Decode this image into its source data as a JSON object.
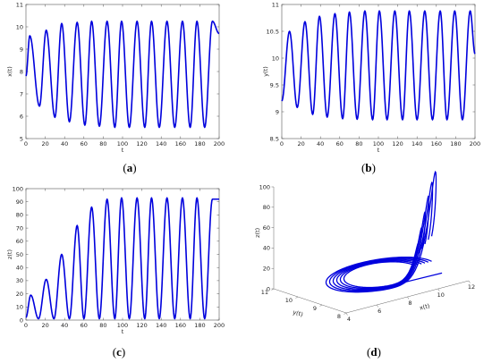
{
  "chart_data": [
    {
      "panel": "a",
      "type": "line",
      "title": "",
      "xlabel": "t",
      "ylabel": "x(t)",
      "xlim": [
        0,
        200
      ],
      "ylim": [
        5,
        11
      ],
      "xticks": [
        "0",
        "20",
        "40",
        "60",
        "80",
        "100",
        "120",
        "140",
        "160",
        "180",
        "200"
      ],
      "yticks": [
        "5",
        "6",
        "7",
        "8",
        "9",
        "10",
        "11"
      ],
      "series": [
        {
          "color": "#0000dd",
          "x0": 7.8,
          "peaks": [
            [
              4,
              9.6
            ],
            [
              21,
              9.85
            ],
            [
              37,
              10.15
            ],
            [
              53,
              10.2
            ],
            [
              68,
              10.25
            ],
            [
              84,
              10.25
            ],
            [
              99,
              10.25
            ],
            [
              115,
              10.25
            ],
            [
              130,
              10.25
            ],
            [
              146,
              10.25
            ],
            [
              162,
              10.25
            ],
            [
              177,
              10.25
            ],
            [
              193,
              10.25
            ]
          ],
          "troughs": [
            [
              14,
              6.45
            ],
            [
              30,
              5.95
            ],
            [
              45,
              5.75
            ],
            [
              61,
              5.6
            ],
            [
              76,
              5.55
            ],
            [
              92,
              5.5
            ],
            [
              107,
              5.5
            ],
            [
              123,
              5.5
            ],
            [
              138,
              5.5
            ],
            [
              154,
              5.5
            ],
            [
              170,
              5.5
            ],
            [
              185,
              5.5
            ]
          ],
          "x_end": 9.7
        }
      ],
      "caption": "(a)"
    },
    {
      "panel": "b",
      "type": "line",
      "title": "",
      "xlabel": "t",
      "ylabel": "y(t)",
      "xlim": [
        0,
        200
      ],
      "ylim": [
        8.5,
        11
      ],
      "xticks": [
        "0",
        "20",
        "40",
        "60",
        "80",
        "100",
        "120",
        "140",
        "160",
        "180",
        "200"
      ],
      "yticks": [
        "8.5",
        "9",
        "9.5",
        "10",
        "10.5",
        "11"
      ],
      "series": [
        {
          "color": "#0000dd",
          "x0": 9.2,
          "peaks": [
            [
              8,
              10.5
            ],
            [
              24,
              10.68
            ],
            [
              39,
              10.78
            ],
            [
              55,
              10.83
            ],
            [
              70,
              10.86
            ],
            [
              86,
              10.88
            ],
            [
              101,
              10.88
            ],
            [
              117,
              10.88
            ],
            [
              132,
              10.88
            ],
            [
              148,
              10.88
            ],
            [
              164,
              10.88
            ],
            [
              179,
              10.88
            ],
            [
              195,
              10.88
            ]
          ],
          "troughs": [
            [
              16,
              9.08
            ],
            [
              32,
              8.95
            ],
            [
              47,
              8.9
            ],
            [
              63,
              8.87
            ],
            [
              78,
              8.86
            ],
            [
              94,
              8.85
            ],
            [
              109,
              8.85
            ],
            [
              125,
              8.85
            ],
            [
              140,
              8.85
            ],
            [
              156,
              8.85
            ],
            [
              171,
              8.85
            ],
            [
              187,
              8.85
            ]
          ],
          "x_end": 10.08
        }
      ],
      "caption": "(b)"
    },
    {
      "panel": "c",
      "type": "line",
      "title": "",
      "xlabel": "t",
      "ylabel": "z(t)",
      "xlim": [
        0,
        200
      ],
      "ylim": [
        0,
        100
      ],
      "xticks": [
        "0",
        "20",
        "40",
        "60",
        "80",
        "100",
        "120",
        "140",
        "160",
        "180",
        "200"
      ],
      "yticks": [
        "0",
        "10",
        "20",
        "30",
        "40",
        "50",
        "60",
        "70",
        "80",
        "90",
        "100"
      ],
      "series": [
        {
          "color": "#0000dd",
          "x0": 2,
          "peaks": [
            [
              5,
              19
            ],
            [
              21,
              31
            ],
            [
              37,
              50
            ],
            [
              53,
              72
            ],
            [
              68,
              86
            ],
            [
              84,
              92
            ],
            [
              99,
              93
            ],
            [
              115,
              93
            ],
            [
              130,
              93
            ],
            [
              146,
              93
            ],
            [
              162,
              93
            ],
            [
              177,
              93
            ],
            [
              193,
              92
            ]
          ],
          "troughs": [
            [
              13,
              1
            ],
            [
              29,
              1
            ],
            [
              45,
              1
            ],
            [
              60,
              1
            ],
            [
              76,
              1
            ],
            [
              92,
              1
            ],
            [
              107,
              1
            ],
            [
              123,
              1
            ],
            [
              138,
              1
            ],
            [
              154,
              1
            ],
            [
              170,
              1
            ],
            [
              185,
              1
            ]
          ],
          "x_end": 92
        }
      ],
      "caption": "(c)"
    },
    {
      "panel": "d",
      "type": "line3d",
      "title": "",
      "xlabel": "x(t)",
      "ylabel": "y(t)",
      "zlabel": "z(t)",
      "xlim": [
        4,
        12
      ],
      "ylim": [
        8,
        11
      ],
      "zlim": [
        0,
        100
      ],
      "xticks": [
        "4",
        "6",
        "8",
        "10",
        "12"
      ],
      "yticks": [
        "8",
        "9",
        "10",
        "11"
      ],
      "zticks": [
        "0",
        "20",
        "40",
        "60",
        "80",
        "100"
      ],
      "loop_peaks_z": [
        30,
        45,
        60,
        75,
        88,
        98
      ],
      "series_color": "#0000dd",
      "caption": "(d)"
    }
  ]
}
